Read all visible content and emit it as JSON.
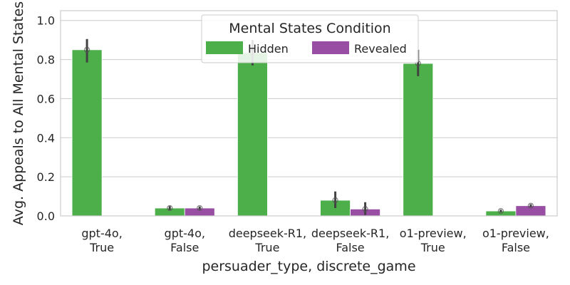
{
  "chart_data": {
    "type": "bar",
    "xlabel": "persuader_type, discrete_game",
    "ylabel": "Avg. Appeals to All Mental States",
    "ylim": [
      0,
      1.05
    ],
    "yticks": [
      "0.0",
      "0.2",
      "0.4",
      "0.6",
      "0.8",
      "1.0"
    ],
    "grid": "horizontal",
    "legend": {
      "title": "Mental States Condition",
      "placement": "top-center"
    },
    "categories": [
      [
        "gpt-4o,",
        "True"
      ],
      [
        "gpt-4o,",
        "False"
      ],
      [
        "deepseek-R1,",
        "True"
      ],
      [
        "deepseek-R1,",
        "False"
      ],
      [
        "o1-preview,",
        "True"
      ],
      [
        "o1-preview,",
        "False"
      ]
    ],
    "series": [
      {
        "name": "Hidden",
        "color": "#4daf4a",
        "values": [
          0.85,
          0.04,
          0.835,
          0.08,
          0.78,
          0.025
        ],
        "ci": [
          [
            0.785,
            0.905
          ],
          [
            0.03,
            0.05
          ],
          [
            0.77,
            0.9
          ],
          [
            0.04,
            0.125
          ],
          [
            0.715,
            0.85
          ],
          [
            0.018,
            0.032
          ]
        ]
      },
      {
        "name": "Revealed",
        "color": "#984ea3",
        "values": [
          null,
          0.04,
          null,
          0.035,
          null,
          0.052
        ],
        "ci": [
          null,
          [
            0.032,
            0.048
          ],
          null,
          [
            0.005,
            0.07
          ],
          null,
          [
            0.045,
            0.06
          ]
        ]
      }
    ]
  }
}
